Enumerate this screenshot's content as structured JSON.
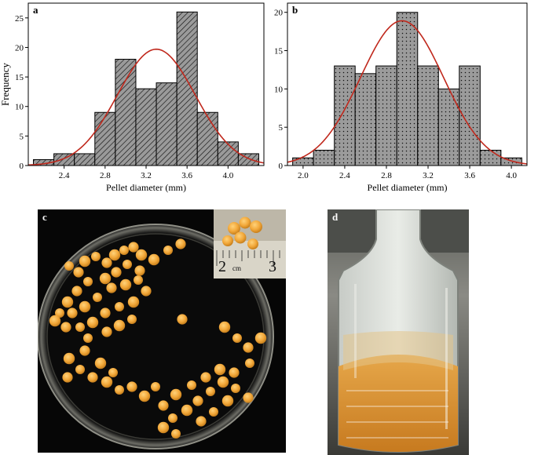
{
  "panels": {
    "a": "a",
    "b": "b",
    "c": "c",
    "d": "d"
  },
  "inset_c": {
    "left_number": "2",
    "unit": "cm",
    "right_number": "3"
  },
  "colors": {
    "bar_fill": "#9a9a9a",
    "bar_stroke": "#000000",
    "fit_curve": "#c0281c",
    "pellet": "#f2a83a",
    "petri_background": "#050505"
  },
  "chart_data": [
    {
      "panel": "a",
      "type": "bar",
      "pattern": "diagonal-hatch",
      "ylabel": "Frequency",
      "xlabel": "Pellet diameter (mm)",
      "xlim": [
        2.05,
        4.35
      ],
      "ylim": [
        0,
        27.5
      ],
      "xticks": [
        "2.4",
        "2.8",
        "3.2",
        "3.6",
        "4.0"
      ],
      "yticks": [
        "0",
        "5",
        "10",
        "15",
        "20",
        "25"
      ],
      "bin_width": 0.2,
      "bins": [
        {
          "x0": 2.1,
          "x1": 2.3,
          "value": 1
        },
        {
          "x0": 2.3,
          "x1": 2.5,
          "value": 2
        },
        {
          "x0": 2.5,
          "x1": 2.7,
          "value": 2
        },
        {
          "x0": 2.7,
          "x1": 2.9,
          "value": 9
        },
        {
          "x0": 2.9,
          "x1": 3.1,
          "value": 18
        },
        {
          "x0": 3.1,
          "x1": 3.3,
          "value": 13
        },
        {
          "x0": 3.3,
          "x1": 3.5,
          "value": 14
        },
        {
          "x0": 3.5,
          "x1": 3.7,
          "value": 26
        },
        {
          "x0": 3.7,
          "x1": 3.9,
          "value": 9
        },
        {
          "x0": 3.9,
          "x1": 4.1,
          "value": 4
        },
        {
          "x0": 4.1,
          "x1": 4.3,
          "value": 2
        }
      ],
      "fit": {
        "type": "normal",
        "mean": 3.3,
        "sd": 0.38,
        "peak": 19.7
      }
    },
    {
      "panel": "b",
      "type": "bar",
      "pattern": "dots",
      "ylabel": "",
      "xlabel": "Pellet diameter (mm)",
      "xlim": [
        1.85,
        4.15
      ],
      "ylim": [
        0,
        21.2
      ],
      "xticks": [
        "2.0",
        "2.4",
        "2.8",
        "3.2",
        "3.6",
        "4.0"
      ],
      "yticks": [
        "0",
        "5",
        "10",
        "15",
        "20"
      ],
      "bin_width": 0.2,
      "bins": [
        {
          "x0": 1.9,
          "x1": 2.1,
          "value": 1
        },
        {
          "x0": 2.1,
          "x1": 2.3,
          "value": 2
        },
        {
          "x0": 2.3,
          "x1": 2.5,
          "value": 13
        },
        {
          "x0": 2.5,
          "x1": 2.7,
          "value": 12
        },
        {
          "x0": 2.7,
          "x1": 2.9,
          "value": 13
        },
        {
          "x0": 2.9,
          "x1": 3.1,
          "value": 20
        },
        {
          "x0": 3.1,
          "x1": 3.3,
          "value": 13
        },
        {
          "x0": 3.3,
          "x1": 3.5,
          "value": 10
        },
        {
          "x0": 3.5,
          "x1": 3.7,
          "value": 13
        },
        {
          "x0": 3.7,
          "x1": 3.9,
          "value": 2
        },
        {
          "x0": 3.9,
          "x1": 4.1,
          "value": 1
        }
      ],
      "fit": {
        "type": "normal",
        "mean": 2.95,
        "sd": 0.4,
        "peak": 18.9
      }
    }
  ]
}
